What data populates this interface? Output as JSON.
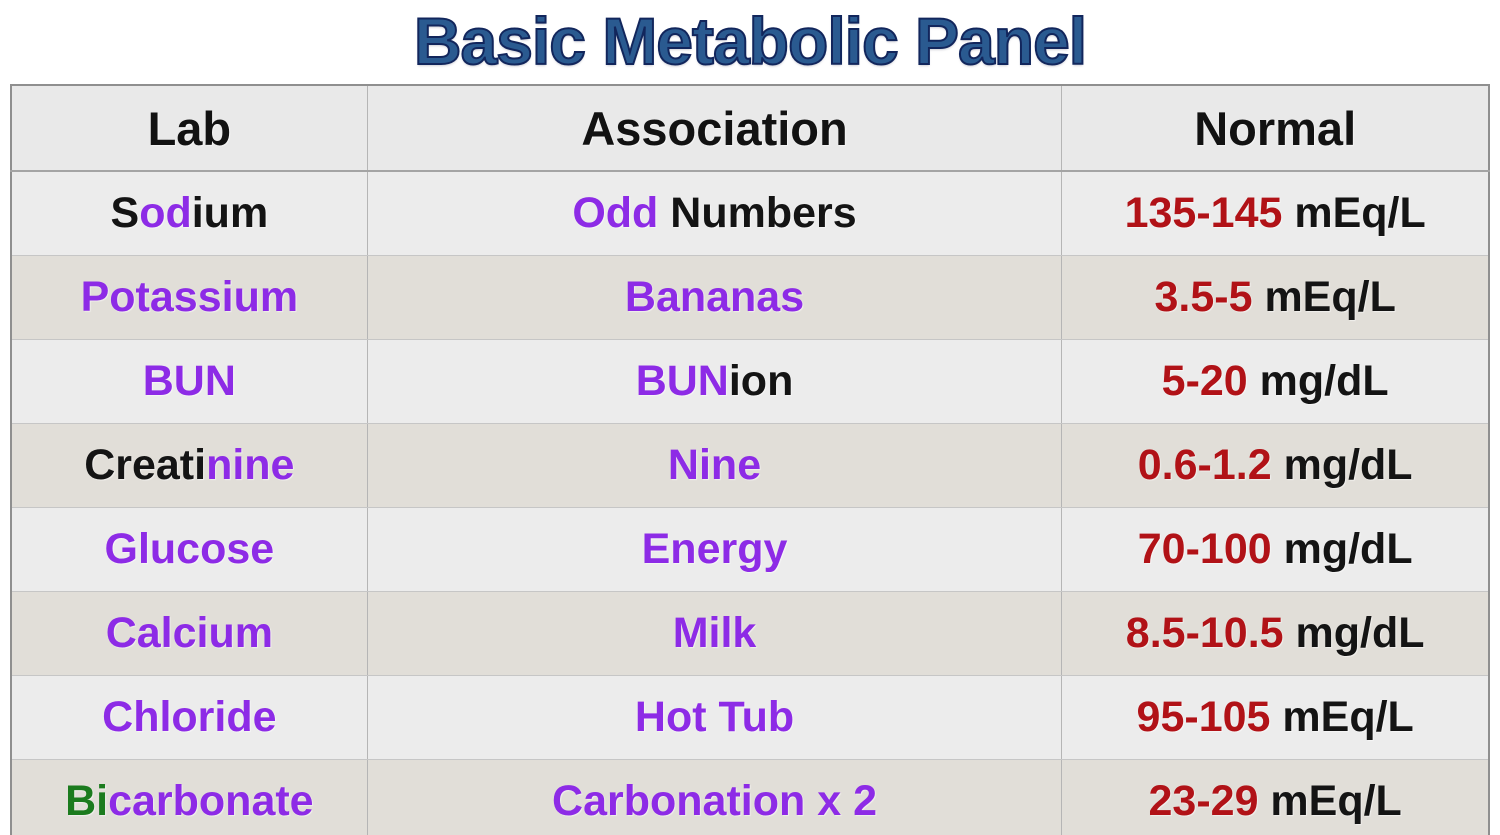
{
  "title": "Basic Metabolic Panel",
  "colors": {
    "black": "#141414",
    "purple": "#8D2BE6",
    "red": "#B11217",
    "green": "#1B7B1E",
    "title_fill": "#2A5A90",
    "title_stroke": "#12265C",
    "row_light_bg": "#ECECEC",
    "row_dark_bg": "#E1DED8",
    "header_bg": "#E9E9E9"
  },
  "table": {
    "headers": [
      {
        "label": "Lab"
      },
      {
        "label": "Association"
      },
      {
        "label": "Normal"
      }
    ],
    "rows": [
      {
        "lab": [
          {
            "text": "S",
            "color": "black"
          },
          {
            "text": "od",
            "color": "purple"
          },
          {
            "text": "ium",
            "color": "black"
          }
        ],
        "association": [
          {
            "text": "Odd",
            "color": "purple"
          },
          {
            "text": " Numbers",
            "color": "black"
          }
        ],
        "normal": [
          {
            "text": "135-145",
            "color": "red"
          },
          {
            "text": " mEq/L",
            "color": "black"
          }
        ]
      },
      {
        "lab": [
          {
            "text": "Potassium",
            "color": "purple"
          }
        ],
        "association": [
          {
            "text": "Bananas",
            "color": "purple"
          }
        ],
        "normal": [
          {
            "text": "3.5-5",
            "color": "red"
          },
          {
            "text": " mEq/L",
            "color": "black"
          }
        ]
      },
      {
        "lab": [
          {
            "text": "BUN",
            "color": "purple"
          }
        ],
        "association": [
          {
            "text": "BUN",
            "color": "purple"
          },
          {
            "text": "ion",
            "color": "black"
          }
        ],
        "normal": [
          {
            "text": "5-20",
            "color": "red"
          },
          {
            "text": " mg/dL",
            "color": "black"
          }
        ]
      },
      {
        "lab": [
          {
            "text": "Creati",
            "color": "black"
          },
          {
            "text": "nine",
            "color": "purple"
          }
        ],
        "association": [
          {
            "text": "Nine",
            "color": "purple"
          }
        ],
        "normal": [
          {
            "text": "0.6-1.2",
            "color": "red"
          },
          {
            "text": " mg/dL",
            "color": "black"
          }
        ]
      },
      {
        "lab": [
          {
            "text": "Glucose",
            "color": "purple"
          }
        ],
        "association": [
          {
            "text": "Energy",
            "color": "purple"
          }
        ],
        "normal": [
          {
            "text": "70-100",
            "color": "red"
          },
          {
            "text": " mg/dL",
            "color": "black"
          }
        ]
      },
      {
        "lab": [
          {
            "text": "Calcium",
            "color": "purple"
          }
        ],
        "association": [
          {
            "text": "Milk",
            "color": "purple"
          }
        ],
        "normal": [
          {
            "text": "8.5-10.5",
            "color": "red"
          },
          {
            "text": " mg/dL",
            "color": "black"
          }
        ]
      },
      {
        "lab": [
          {
            "text": "Chloride",
            "color": "purple"
          }
        ],
        "association": [
          {
            "text": "Hot Tub",
            "color": "purple"
          }
        ],
        "normal": [
          {
            "text": "95-105",
            "color": "red"
          },
          {
            "text": " mEq/L",
            "color": "black"
          }
        ]
      },
      {
        "lab": [
          {
            "text": "Bi",
            "color": "green"
          },
          {
            "text": "carbonate",
            "color": "purple"
          }
        ],
        "association": [
          {
            "text": "Carbonation x 2",
            "color": "purple"
          }
        ],
        "normal": [
          {
            "text": "23-29",
            "color": "red"
          },
          {
            "text": " mEq/L",
            "color": "black"
          }
        ]
      }
    ]
  },
  "chart_data": {
    "type": "table",
    "title": "Basic Metabolic Panel",
    "columns": [
      "Lab",
      "Association",
      "Normal"
    ],
    "rows": [
      [
        "Sodium",
        "Odd Numbers",
        "135-145 mEq/L"
      ],
      [
        "Potassium",
        "Bananas",
        "3.5-5 mEq/L"
      ],
      [
        "BUN",
        "BUNion",
        "5-20 mg/dL"
      ],
      [
        "Creatinine",
        "Nine",
        "0.6-1.2 mg/dL"
      ],
      [
        "Glucose",
        "Energy",
        "70-100 mg/dL"
      ],
      [
        "Calcium",
        "Milk",
        "8.5-10.5 mg/dL"
      ],
      [
        "Chloride",
        "Hot Tub",
        "95-105 mEq/L"
      ],
      [
        "Bicarbonate",
        "Carbonation x 2",
        "23-29 mEq/L"
      ]
    ]
  }
}
